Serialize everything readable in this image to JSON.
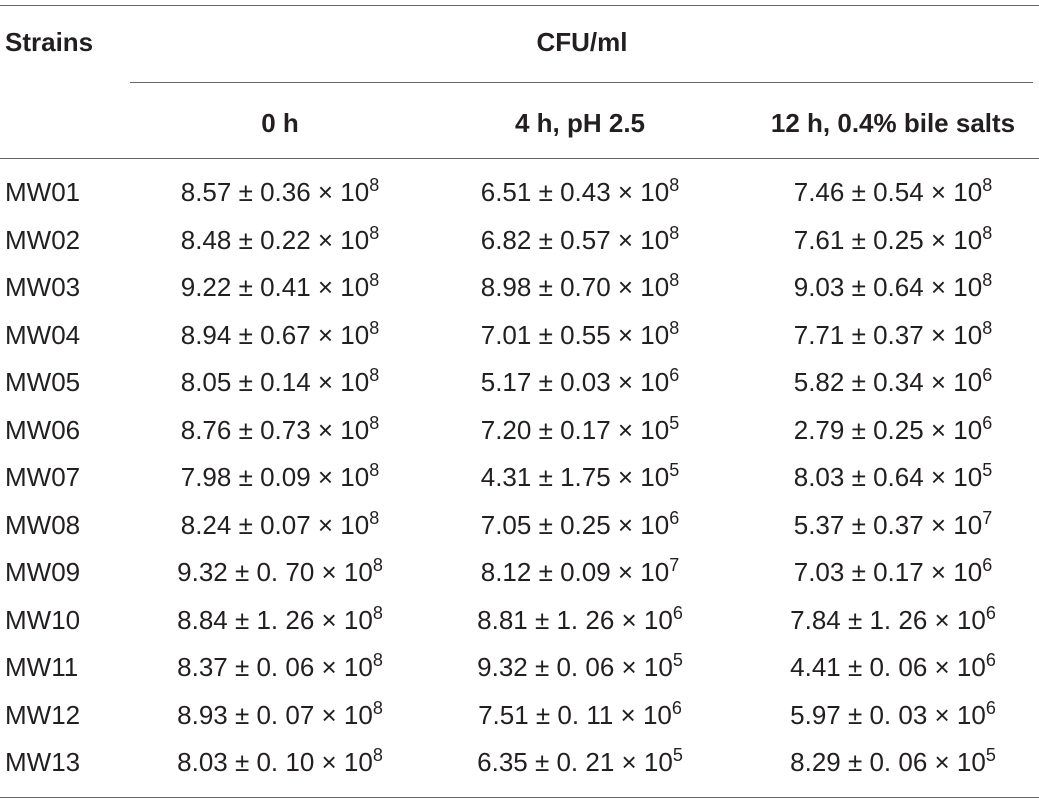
{
  "table": {
    "header": {
      "strains": "Strains",
      "group": "CFU/ml",
      "columns": [
        "0 h",
        "4 h, pH 2.5",
        "12 h, 0.4% bile salts"
      ]
    },
    "rows": [
      [
        "MW01",
        {
          "base": "8.57 ± 0.36 × 10",
          "exp": "8"
        },
        {
          "base": "6.51 ± 0.43 × 10",
          "exp": "8"
        },
        {
          "base": "7.46 ± 0.54 × 10",
          "exp": "8"
        }
      ],
      [
        "MW02",
        {
          "base": "8.48 ± 0.22 × 10",
          "exp": "8"
        },
        {
          "base": "6.82 ± 0.57 × 10",
          "exp": "8"
        },
        {
          "base": "7.61 ± 0.25 × 10",
          "exp": "8"
        }
      ],
      [
        "MW03",
        {
          "base": "9.22 ± 0.41 × 10",
          "exp": "8"
        },
        {
          "base": "8.98 ± 0.70 × 10",
          "exp": "8"
        },
        {
          "base": "9.03 ± 0.64 × 10",
          "exp": "8"
        }
      ],
      [
        "MW04",
        {
          "base": "8.94 ± 0.67 × 10",
          "exp": "8"
        },
        {
          "base": "7.01 ± 0.55 × 10",
          "exp": "8"
        },
        {
          "base": "7.71 ± 0.37 × 10",
          "exp": "8"
        }
      ],
      [
        "MW05",
        {
          "base": "8.05 ± 0.14 × 10",
          "exp": "8"
        },
        {
          "base": "5.17 ± 0.03 × 10",
          "exp": "6"
        },
        {
          "base": "5.82 ± 0.34 × 10",
          "exp": "6"
        }
      ],
      [
        "MW06",
        {
          "base": "8.76 ± 0.73 × 10",
          "exp": "8"
        },
        {
          "base": "7.20 ± 0.17 × 10",
          "exp": "5"
        },
        {
          "base": "2.79 ± 0.25 × 10",
          "exp": "6"
        }
      ],
      [
        "MW07",
        {
          "base": "7.98 ± 0.09 × 10",
          "exp": "8"
        },
        {
          "base": "4.31 ± 1.75 × 10",
          "exp": "5"
        },
        {
          "base": "8.03 ± 0.64 × 10",
          "exp": "5"
        }
      ],
      [
        "MW08",
        {
          "base": "8.24 ± 0.07 × 10",
          "exp": "8"
        },
        {
          "base": "7.05 ± 0.25 × 10",
          "exp": "6"
        },
        {
          "base": "5.37 ± 0.37 × 10",
          "exp": "7"
        }
      ],
      [
        "MW09",
        {
          "base": "9.32 ± 0. 70 × 10",
          "exp": "8"
        },
        {
          "base": "8.12 ± 0.09 × 10",
          "exp": "7"
        },
        {
          "base": "7.03 ± 0.17 × 10",
          "exp": "6"
        }
      ],
      [
        "MW10",
        {
          "base": "8.84 ± 1. 26 × 10",
          "exp": "8"
        },
        {
          "base": "8.81 ± 1. 26 × 10",
          "exp": "6"
        },
        {
          "base": "7.84 ± 1. 26 × 10",
          "exp": "6"
        }
      ],
      [
        "MW11",
        {
          "base": "8.37 ± 0. 06 × 10",
          "exp": "8"
        },
        {
          "base": "9.32 ± 0. 06 × 10",
          "exp": "5"
        },
        {
          "base": "4.41 ± 0. 06 × 10",
          "exp": "6"
        }
      ],
      [
        "MW12",
        {
          "base": "8.93 ± 0. 07 × 10",
          "exp": "8"
        },
        {
          "base": "7.51 ± 0. 11 × 10",
          "exp": "6"
        },
        {
          "base": "5.97 ± 0. 03 × 10",
          "exp": "6"
        }
      ],
      [
        "MW13",
        {
          "base": "8.03 ± 0. 10 × 10",
          "exp": "8"
        },
        {
          "base": "6.35 ± 0. 21 × 10",
          "exp": "5"
        },
        {
          "base": "8.29 ± 0. 06 × 10",
          "exp": "5"
        }
      ]
    ]
  }
}
